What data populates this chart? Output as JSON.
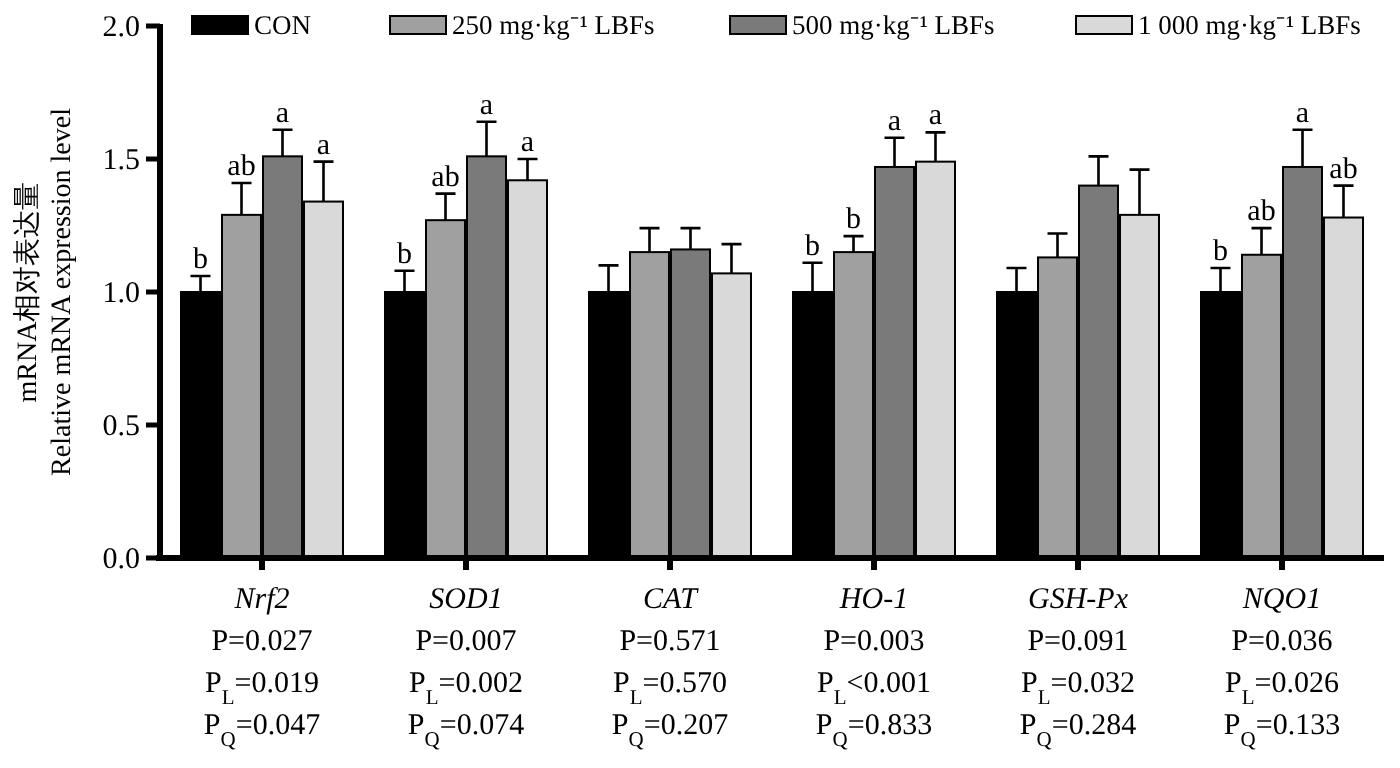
{
  "chart_data": {
    "type": "bar",
    "ylabel": "mRNA相对表达量\nRelative mRNA expression level",
    "categories": [
      "Nrf2\nP=0.027\nP$_{L}$=0.019\nP$_{Q}$=0.047",
      "SOD1\nP=0.007\nP$_{L}$=0.002\nP$_{Q}$=0.074",
      "CAT\nP=0.571\nP$_{L}$=0.570\nP$_{Q}$=0.207",
      "HO-1\nP=0.003\nP$_{L}$<0.001\nP$_{Q}$=0.833",
      "GSH-Px\nP=0.091\nP$_{L}$=0.032\nP$_{Q}$=0.284",
      "NQO1\nP=0.036\nP$_{L}$=0.026\nP$_{Q}$=0.133"
    ],
    "series": [
      {
        "name": "CON",
        "color": "#000000",
        "values": [
          1.0,
          1.0,
          1.0,
          1.0,
          1.0,
          1.0
        ],
        "errors": [
          [
            1.0,
            1.06
          ],
          [
            1.0,
            1.08
          ],
          [
            1.0,
            1.1
          ],
          [
            1.0,
            1.11
          ],
          [
            1.0,
            1.09
          ],
          [
            1.0,
            1.09
          ]
        ],
        "value_labels": [
          "b",
          "b",
          null,
          "b",
          null,
          "b"
        ]
      },
      {
        "name": "250 mg·kg⁻¹ LBFs",
        "color": "#a0a0a0",
        "values": [
          1.29,
          1.27,
          1.15,
          1.15,
          1.13,
          1.14
        ],
        "errors": [
          [
            1.29,
            1.41
          ],
          [
            1.27,
            1.37
          ],
          [
            1.15,
            1.24
          ],
          [
            1.15,
            1.21
          ],
          [
            1.13,
            1.22
          ],
          [
            1.14,
            1.24
          ]
        ],
        "value_labels": [
          "ab",
          "ab",
          null,
          "b",
          null,
          "ab"
        ]
      },
      {
        "name": "500 mg·kg⁻¹ LBFs",
        "color": "#7a7a7a",
        "values": [
          1.51,
          1.51,
          1.16,
          1.47,
          1.4,
          1.47
        ],
        "errors": [
          [
            1.51,
            1.61
          ],
          [
            1.51,
            1.64
          ],
          [
            1.16,
            1.24
          ],
          [
            1.47,
            1.58
          ],
          [
            1.4,
            1.51
          ],
          [
            1.47,
            1.61
          ]
        ],
        "value_labels": [
          "a",
          "a",
          null,
          "a",
          null,
          "a"
        ]
      },
      {
        "name": "1 000 mg·kg⁻¹ LBFs",
        "color": "#d9d9d9",
        "values": [
          1.34,
          1.42,
          1.07,
          1.49,
          1.29,
          1.28
        ],
        "errors": [
          [
            1.34,
            1.49
          ],
          [
            1.42,
            1.5
          ],
          [
            1.07,
            1.18
          ],
          [
            1.49,
            1.6
          ],
          [
            1.29,
            1.46
          ],
          [
            1.28,
            1.4
          ]
        ],
        "value_labels": [
          "a",
          "a",
          null,
          "a",
          null,
          "ab"
        ]
      }
    ],
    "ylim": [
      0,
      2
    ],
    "yticks": [
      {
        "value": 0,
        "label": "0.0"
      },
      {
        "value": 0.5,
        "label": "0.5"
      },
      {
        "value": 1,
        "label": "1.0"
      },
      {
        "value": 1.5,
        "label": "1.5"
      },
      {
        "value": 2,
        "label": "2.0"
      }
    ],
    "legend": "top"
  }
}
